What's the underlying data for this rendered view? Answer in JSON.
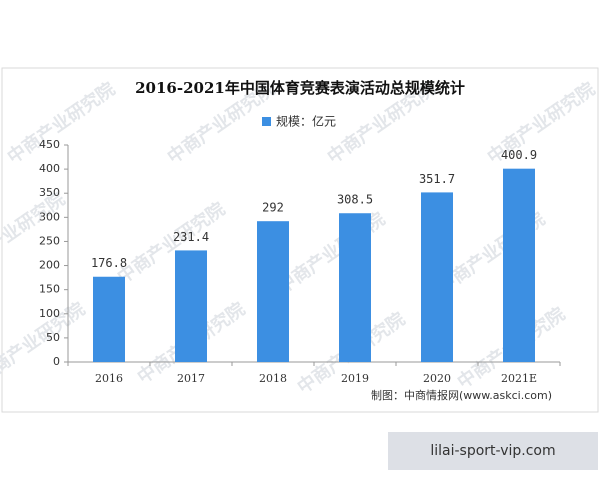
{
  "chart_data": {
    "type": "bar",
    "title": "2016-2021年中国体育竞赛表演活动总规模统计",
    "legend": "规模：亿元",
    "categories": [
      "2016",
      "2017",
      "2018",
      "2019",
      "2020",
      "2021E"
    ],
    "values": [
      176.8,
      231.4,
      292,
      308.5,
      351.7,
      400.9
    ],
    "color": "#3c8fe2",
    "ylim": [
      0,
      450
    ],
    "yticks": [
      0,
      50,
      100,
      150,
      200,
      250,
      300,
      350,
      400,
      450
    ],
    "grid": false,
    "source": "制图：中商情报网(www.askci.com)",
    "watermark": "中商产业研究院"
  },
  "footer_badge": "lilai-sport-vip.com"
}
